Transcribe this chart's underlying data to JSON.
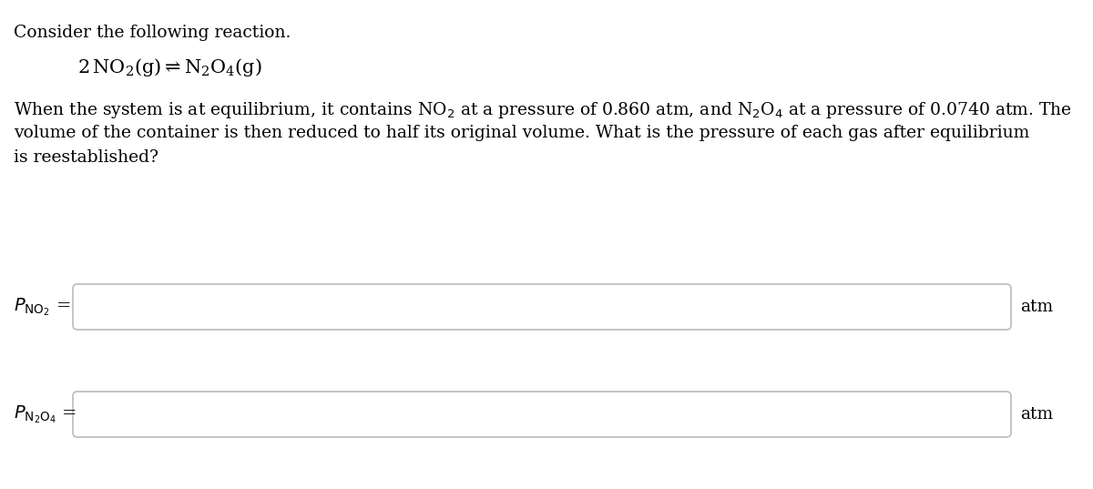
{
  "background_color": "#ffffff",
  "text_color": "#000000",
  "line1": "Consider the following reaction.",
  "reaction_parts": {
    "prefix": "2 NO",
    "sub1": "2",
    "middle1": "(g) ",
    "arrow": "⇌",
    "space": " N",
    "sub2": "2",
    "o": "O",
    "sub3": "4",
    "suffix": "(g)"
  },
  "para_line1": "When the system is at equilibrium, it contains NO",
  "para_line1b": "2",
  "para_line1c": " at a pressure of 0.860 atm, and N",
  "para_line1d": "2",
  "para_line1e": "O",
  "para_line1f": "4",
  "para_line1g": " at a pressure of 0.0740 atm. The",
  "para_line2": "volume of the container is then reduced to half its original volume. What is the pressure of each gas after equilibrium",
  "para_line3": "is reestablished?",
  "label1": "$P_{\\mathrm{NO_2}}$ =",
  "label2": "$P_{\\mathrm{N_2O_4}}$ =",
  "unit": "atm",
  "box_facecolor": "#ffffff",
  "box_edgecolor": "#bbbbbb",
  "font_size_main": 13.5,
  "font_size_reaction": 15,
  "font_size_label": 14
}
